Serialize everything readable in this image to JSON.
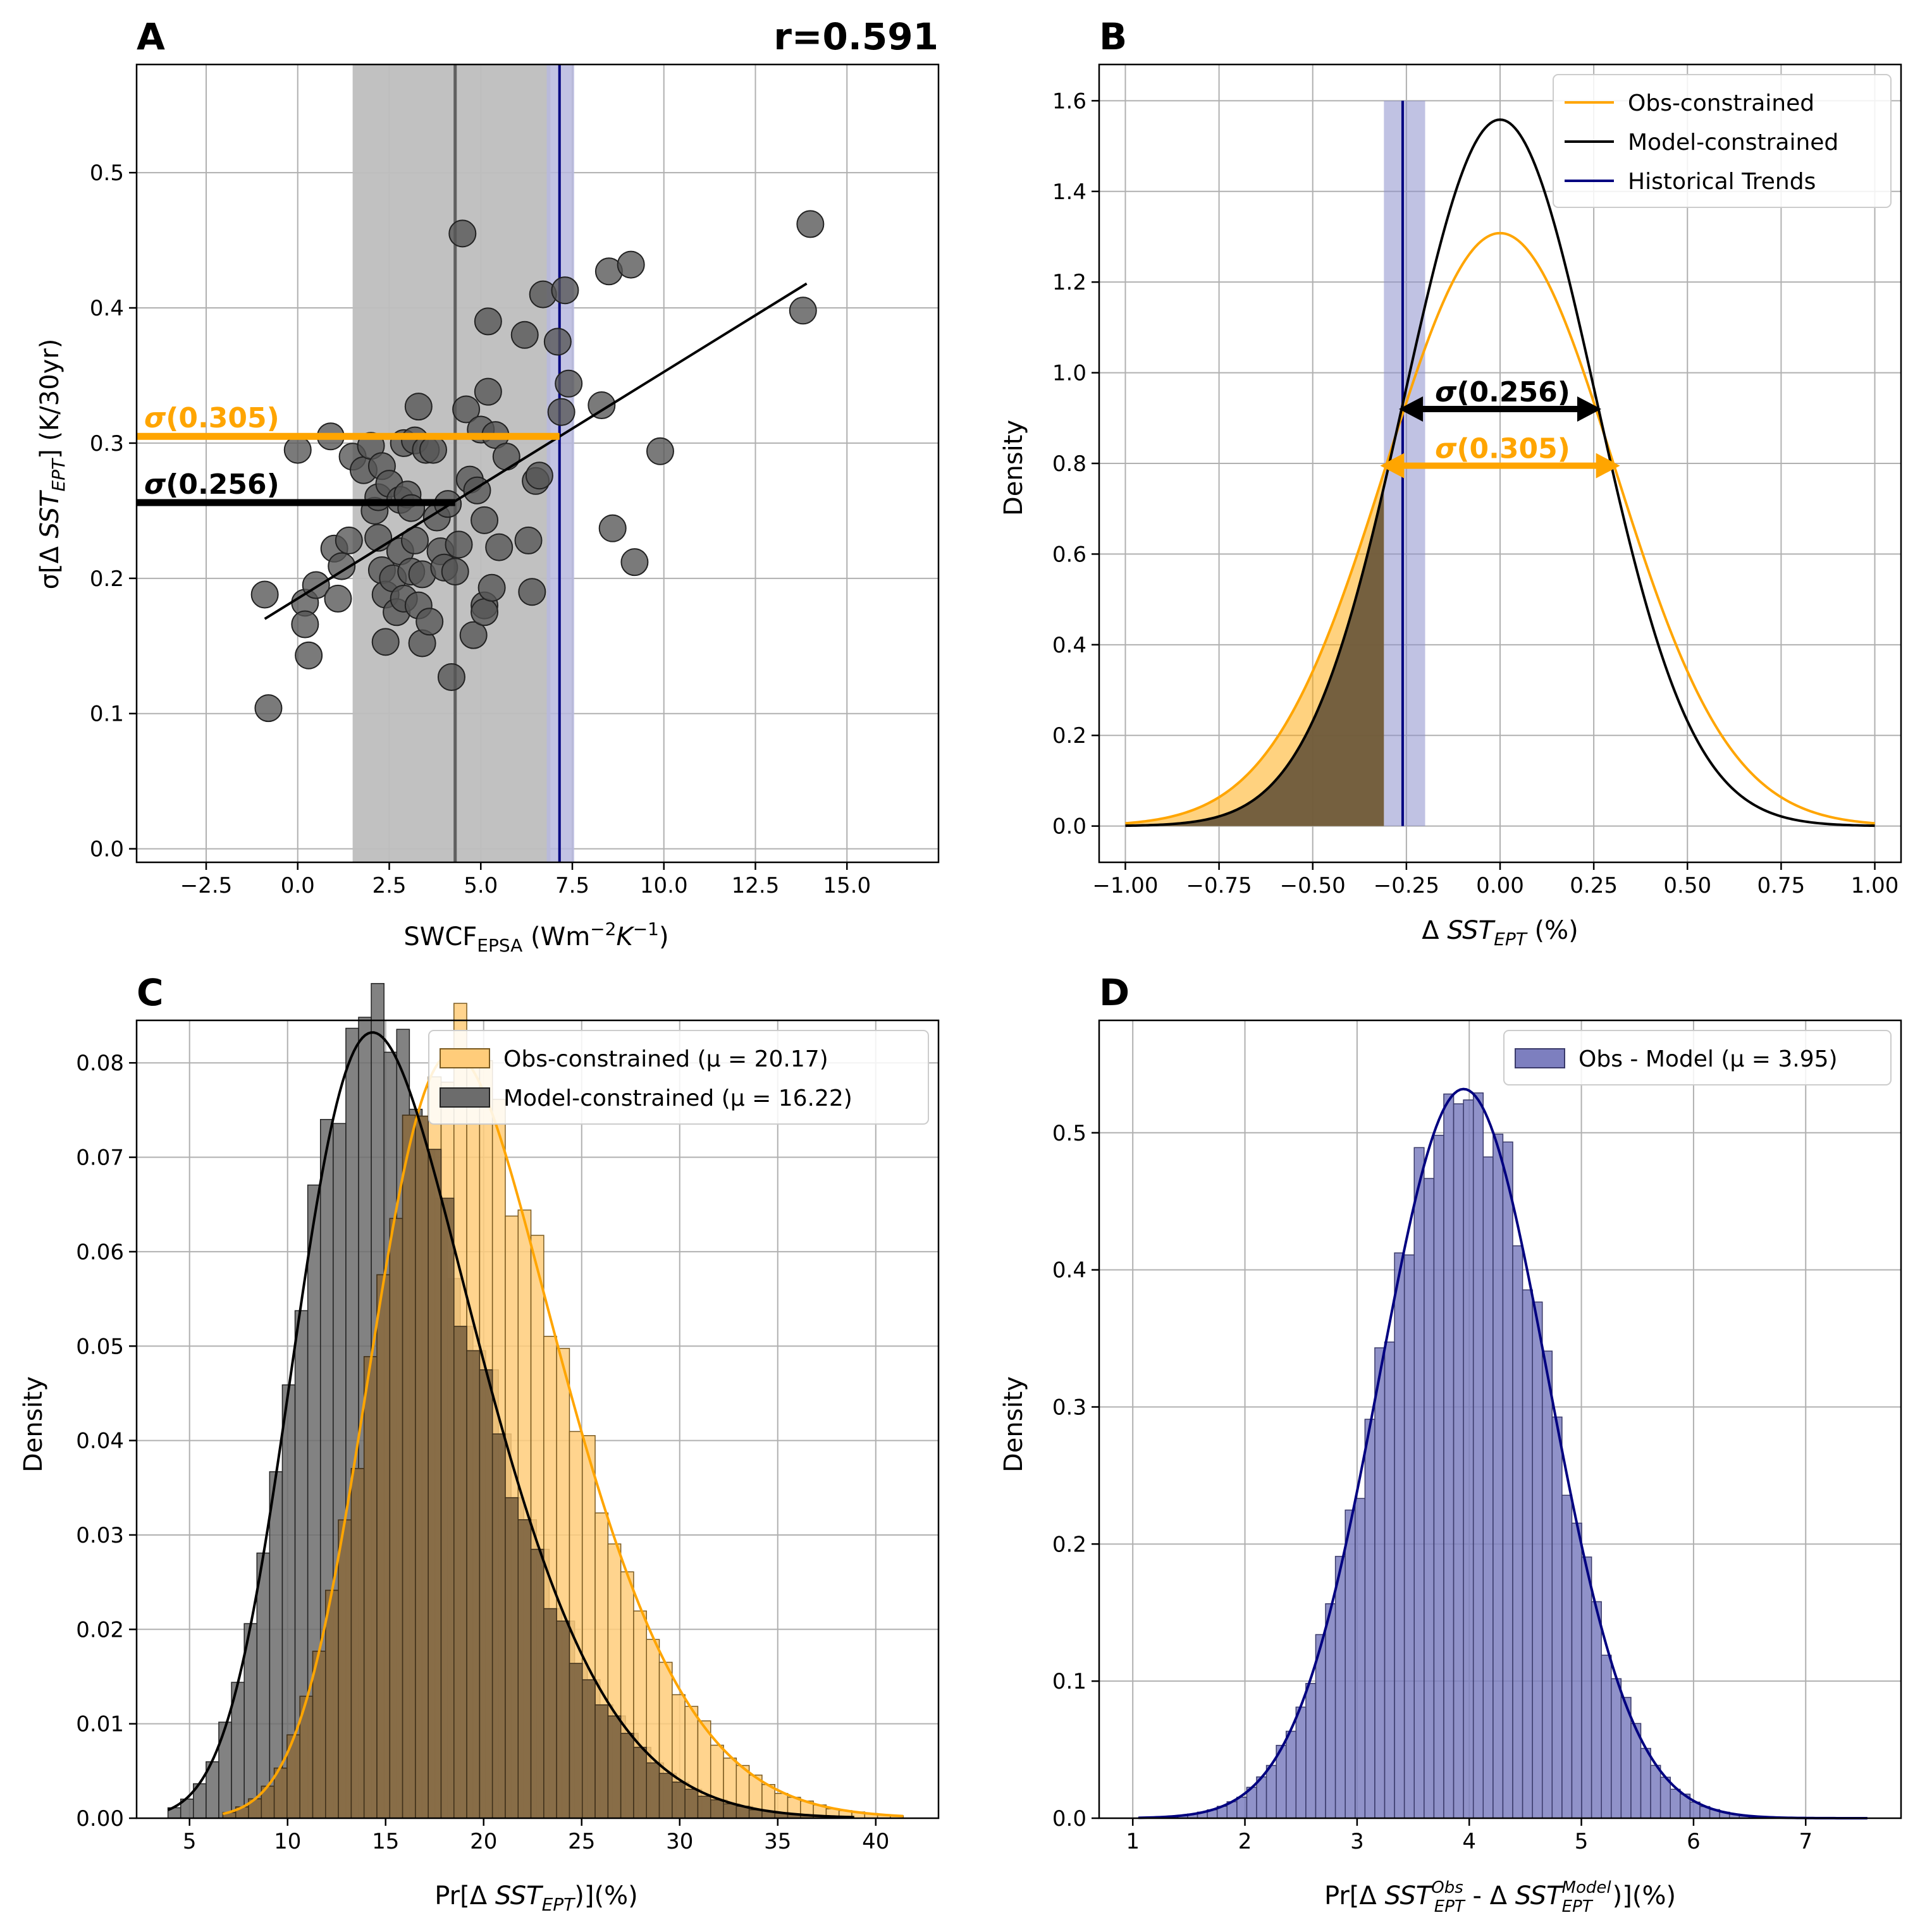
{
  "chart_data": [
    {
      "panel": "A",
      "type": "scatter",
      "annotation_right": "r=0.591",
      "xlabel": "SWCF",
      "xlabel_sub": "EPSA",
      "xlabel_unit": "(Wm",
      "xlabel_unit_sup": "−2",
      "xlabel_unit_k": "K",
      "xlabel_unit_ksup": "−1",
      "xlabel_unit_close": ")",
      "ylabel_pre": "σ[Δ ",
      "ylabel_var": "SST",
      "ylabel_sub": "EPT",
      "ylabel_post": "] (K/30yr)",
      "xlim": [
        -4.4,
        17.5
      ],
      "ylim": [
        -0.01,
        0.58
      ],
      "xticks": [
        -2.5,
        0.0,
        2.5,
        5.0,
        7.5,
        10.0,
        12.5,
        15.0
      ],
      "yticks": [
        0.0,
        0.1,
        0.2,
        0.3,
        0.4,
        0.5
      ],
      "points": [
        [
          -0.9,
          0.188
        ],
        [
          -0.8,
          0.104
        ],
        [
          0.0,
          0.295
        ],
        [
          0.2,
          0.182
        ],
        [
          0.2,
          0.166
        ],
        [
          0.3,
          0.143
        ],
        [
          0.5,
          0.195
        ],
        [
          0.9,
          0.305
        ],
        [
          1.0,
          0.222
        ],
        [
          1.1,
          0.185
        ],
        [
          1.2,
          0.209
        ],
        [
          1.4,
          0.228
        ],
        [
          1.5,
          0.29
        ],
        [
          1.8,
          0.28
        ],
        [
          2.0,
          0.298
        ],
        [
          2.1,
          0.25
        ],
        [
          2.2,
          0.23
        ],
        [
          2.2,
          0.26
        ],
        [
          2.3,
          0.283
        ],
        [
          2.3,
          0.206
        ],
        [
          2.4,
          0.188
        ],
        [
          2.4,
          0.153
        ],
        [
          2.5,
          0.27
        ],
        [
          2.6,
          0.2
        ],
        [
          2.7,
          0.175
        ],
        [
          2.8,
          0.22
        ],
        [
          2.8,
          0.258
        ],
        [
          2.9,
          0.3
        ],
        [
          2.9,
          0.185
        ],
        [
          3.0,
          0.262
        ],
        [
          3.1,
          0.252
        ],
        [
          3.1,
          0.205
        ],
        [
          3.2,
          0.302
        ],
        [
          3.2,
          0.228
        ],
        [
          3.3,
          0.18
        ],
        [
          3.3,
          0.327
        ],
        [
          3.4,
          0.203
        ],
        [
          3.4,
          0.152
        ],
        [
          3.5,
          0.295
        ],
        [
          3.6,
          0.168
        ],
        [
          3.7,
          0.295
        ],
        [
          3.8,
          0.245
        ],
        [
          3.9,
          0.22
        ],
        [
          4.0,
          0.208
        ],
        [
          4.1,
          0.255
        ],
        [
          4.2,
          0.127
        ],
        [
          4.3,
          0.205
        ],
        [
          4.4,
          0.225
        ],
        [
          4.5,
          0.455
        ],
        [
          4.6,
          0.325
        ],
        [
          4.7,
          0.273
        ],
        [
          4.8,
          0.158
        ],
        [
          4.9,
          0.265
        ],
        [
          5.0,
          0.31
        ],
        [
          5.1,
          0.243
        ],
        [
          5.1,
          0.18
        ],
        [
          5.1,
          0.175
        ],
        [
          5.2,
          0.338
        ],
        [
          5.2,
          0.39
        ],
        [
          5.3,
          0.193
        ],
        [
          5.4,
          0.306
        ],
        [
          5.5,
          0.223
        ],
        [
          5.7,
          0.29
        ],
        [
          6.2,
          0.38
        ],
        [
          6.3,
          0.228
        ],
        [
          6.4,
          0.19
        ],
        [
          6.5,
          0.272
        ],
        [
          6.6,
          0.276
        ],
        [
          6.7,
          0.41
        ],
        [
          7.1,
          0.375
        ],
        [
          7.2,
          0.323
        ],
        [
          7.3,
          0.413
        ],
        [
          7.4,
          0.344
        ],
        [
          8.3,
          0.328
        ],
        [
          8.5,
          0.427
        ],
        [
          8.6,
          0.237
        ],
        [
          9.1,
          0.432
        ],
        [
          9.2,
          0.212
        ],
        [
          9.9,
          0.294
        ],
        [
          13.8,
          0.398
        ],
        [
          14.0,
          0.462
        ]
      ],
      "fit_line": [
        [
          -0.9,
          0.17
        ],
        [
          13.9,
          0.418
        ]
      ],
      "model_range": [
        1.5,
        4.3,
        6.9
      ],
      "obs_band": [
        6.8,
        7.15,
        7.55
      ],
      "obs_sigma": {
        "value": 0.305,
        "label_pre": "σ",
        "label_post": "(0.305)"
      },
      "model_sigma": {
        "value": 0.256,
        "label_pre": "σ",
        "label_post": "(0.256)"
      },
      "colors": {
        "points": "#555555",
        "fit": "#000000",
        "model_band": "#bebebe",
        "obs_band": "#b7b9de",
        "hist": "#000080",
        "obs": "#ffa500"
      }
    },
    {
      "panel": "B",
      "type": "line",
      "xlabel_pre": "Δ ",
      "xlabel_var": "SST",
      "xlabel_sub": "EPT",
      "xlabel_post": " (%)",
      "ylabel": "Density",
      "xlim": [
        -1.07,
        1.07
      ],
      "ylim": [
        -0.08,
        1.68
      ],
      "xticks": [
        -1.0,
        -0.75,
        -0.5,
        -0.25,
        0.0,
        0.25,
        0.5,
        0.75,
        1.0
      ],
      "yticks": [
        0.0,
        0.2,
        0.4,
        0.6,
        0.8,
        1.0,
        1.2,
        1.4,
        1.6
      ],
      "series": [
        {
          "name": "Obs-constrained",
          "sigma": 0.305,
          "color": "#ffa500"
        },
        {
          "name": "Model-constrained",
          "sigma": 0.256,
          "color": "#000000"
        },
        {
          "name": "Historical Trends",
          "color": "#000080"
        }
      ],
      "hist_trend": {
        "center": -0.26,
        "band": [
          -0.31,
          -0.2
        ],
        "top": 1.6
      },
      "arrow_model": {
        "y": 0.92,
        "x": [
          -0.27,
          0.27
        ],
        "label_pre": "σ",
        "label_post": "(0.256)"
      },
      "arrow_obs": {
        "y": 0.795,
        "x": [
          -0.32,
          0.32
        ],
        "label_pre": "σ",
        "label_post": "(0.305)"
      },
      "legend_position": "upper right"
    },
    {
      "panel": "C",
      "type": "histogram",
      "xlabel_pre": "Pr[Δ ",
      "xlabel_var": "SST",
      "xlabel_sub": "EPT",
      "xlabel_post": ")](%)",
      "ylabel": "Density",
      "xlim": [
        2.3,
        43.2
      ],
      "ylim": [
        0,
        0.0845
      ],
      "xticks": [
        5,
        10,
        15,
        20,
        25,
        30,
        35,
        40
      ],
      "yticks": [
        0.0,
        0.01,
        0.02,
        0.03,
        0.04,
        0.05,
        0.06,
        0.07,
        0.08
      ],
      "series": [
        {
          "name": "Obs-constrained (μ = 20.17)",
          "mu": 20.17,
          "sd": 5.2,
          "skew": 2.4,
          "start": 6.7,
          "end": 41.4,
          "bins": 53,
          "fill": "#ffcc7a",
          "line": "#ffa500",
          "edge": "#7a5a20"
        },
        {
          "name": "Model-constrained (μ = 16.22)",
          "mu": 16.22,
          "sd": 5.1,
          "skew": 2.6,
          "start": 3.9,
          "end": 38.9,
          "bins": 54,
          "fill": "#6c6c6c",
          "line": "#000000",
          "edge": "#222222"
        }
      ],
      "overlap_fill": "#7d6441",
      "legend_position": "upper right"
    },
    {
      "panel": "D",
      "type": "histogram",
      "xlabel_pre": "Pr[Δ ",
      "xlabel_var": "SST",
      "xlabel_sub": "EPT",
      "xlabel_sup": "Obs",
      "xlabel_mid": " - Δ ",
      "xlabel_sub2": "EPT",
      "xlabel_sup2": "Model",
      "xlabel_post": ")](%)",
      "ylabel": "Density",
      "xlim": [
        0.7,
        7.85
      ],
      "ylim": [
        0,
        0.582
      ],
      "xticks": [
        1,
        2,
        3,
        4,
        5,
        6,
        7
      ],
      "yticks": [
        0.0,
        0.1,
        0.2,
        0.3,
        0.4,
        0.5
      ],
      "series": [
        {
          "name": "Obs - Model (μ = 3.95)",
          "mu": 3.95,
          "sd": 0.75,
          "start": 1.05,
          "end": 7.55,
          "bins": 74,
          "fill": "#7d7fbf",
          "line": "#000080",
          "edge": "#3a3a6a"
        }
      ],
      "legend_position": "upper right"
    }
  ]
}
